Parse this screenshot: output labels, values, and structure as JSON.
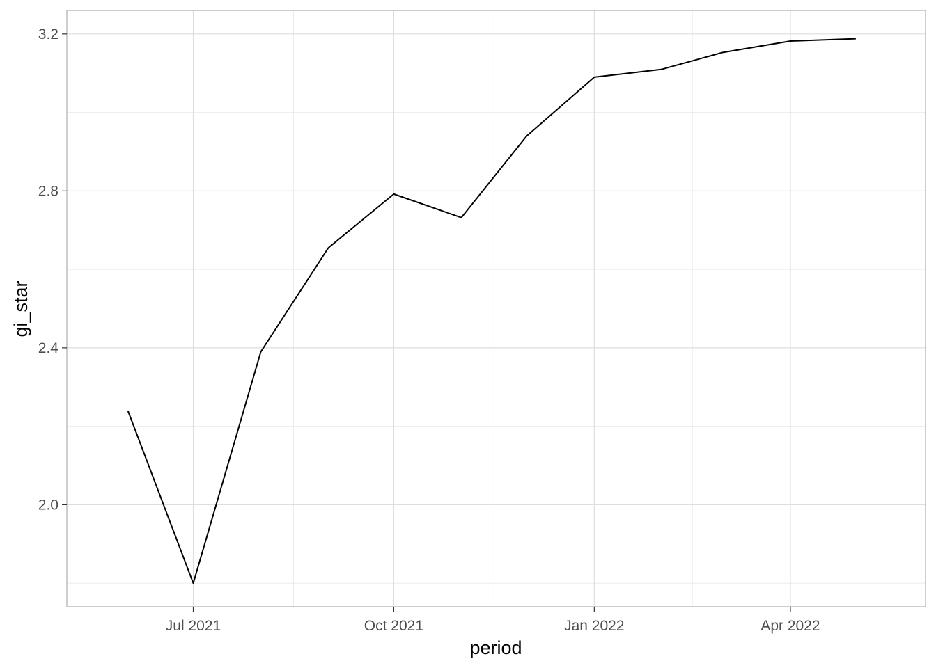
{
  "chart_data": {
    "type": "line",
    "title": "",
    "xlabel": "period",
    "ylabel": "gi_star",
    "x_ticks": [
      "Jul 2021",
      "Oct 2021",
      "Jan 2022",
      "Apr 2022"
    ],
    "x_tick_dates": [
      "2021-07-01",
      "2021-10-01",
      "2022-01-01",
      "2022-04-01"
    ],
    "x_minor_tick_dates": [
      "2021-08-16",
      "2021-11-16",
      "2022-02-15"
    ],
    "y_ticks": [
      2.0,
      2.4,
      2.8,
      3.2
    ],
    "y_ticks_labels": [
      "2.0",
      "2.4",
      "2.8",
      "3.2"
    ],
    "y_minor_ticks": [
      1.8,
      2.2,
      2.6,
      3.0
    ],
    "xlim": [
      "2021-05-04",
      "2022-06-02"
    ],
    "ylim": [
      1.74,
      3.26
    ],
    "grid": true,
    "line_color": "#000000",
    "series": [
      {
        "x": [
          "2021-06-01",
          "2021-07-01",
          "2021-08-01",
          "2021-09-01",
          "2021-10-01",
          "2021-11-01",
          "2021-12-01",
          "2022-01-01",
          "2022-02-01",
          "2022-03-01",
          "2022-04-01",
          "2022-05-01"
        ],
        "values": [
          2.24,
          1.8,
          2.39,
          2.655,
          2.792,
          2.732,
          2.94,
          3.09,
          3.11,
          3.153,
          3.182,
          3.188
        ]
      }
    ]
  }
}
